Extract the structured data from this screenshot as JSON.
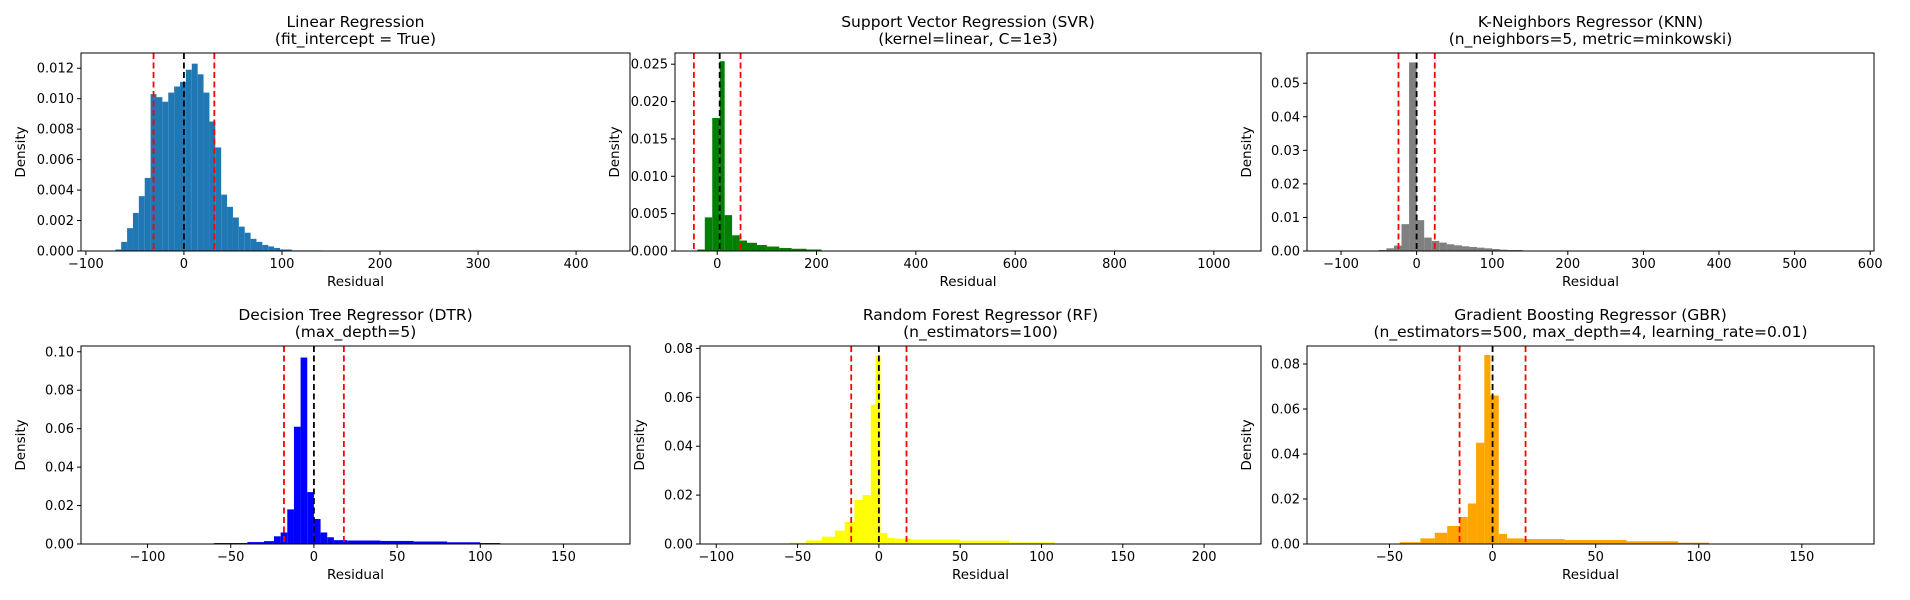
{
  "figure": {
    "background": "#ffffff"
  },
  "chart_data": [
    {
      "type": "histogram",
      "title": [
        "Linear Regression",
        "(fit_intercept = True)"
      ],
      "xlabel": "Residual",
      "ylabel": "Density",
      "xlim": [
        -105,
        455
      ],
      "ylim": [
        0,
        0.013
      ],
      "xticks": [
        -100,
        0,
        100,
        200,
        300,
        400
      ],
      "yticks": [
        0,
        0.002,
        0.004,
        0.006,
        0.008,
        0.01,
        0.012
      ],
      "ytick_labels": [
        "0.000",
        "0.002",
        "0.004",
        "0.006",
        "0.008",
        "0.010",
        "0.012"
      ],
      "color": "#1f77b4",
      "bins": [
        {
          "x0": -70,
          "x1": -64,
          "y": 0.0001
        },
        {
          "x0": -64,
          "x1": -58,
          "y": 0.0006
        },
        {
          "x0": -58,
          "x1": -52,
          "y": 0.0015
        },
        {
          "x0": -52,
          "x1": -46,
          "y": 0.0025
        },
        {
          "x0": -46,
          "x1": -40,
          "y": 0.0036
        },
        {
          "x0": -40,
          "x1": -34,
          "y": 0.0048
        },
        {
          "x0": -34,
          "x1": -28,
          "y": 0.0103
        },
        {
          "x0": -28,
          "x1": -22,
          "y": 0.0101
        },
        {
          "x0": -22,
          "x1": -16,
          "y": 0.0098
        },
        {
          "x0": -16,
          "x1": -10,
          "y": 0.0104
        },
        {
          "x0": -10,
          "x1": -4,
          "y": 0.0108
        },
        {
          "x0": -4,
          "x1": 2,
          "y": 0.0111
        },
        {
          "x0": 2,
          "x1": 8,
          "y": 0.0119
        },
        {
          "x0": 8,
          "x1": 14,
          "y": 0.0123
        },
        {
          "x0": 14,
          "x1": 20,
          "y": 0.0116
        },
        {
          "x0": 20,
          "x1": 26,
          "y": 0.0104
        },
        {
          "x0": 26,
          "x1": 32,
          "y": 0.0085
        },
        {
          "x0": 32,
          "x1": 38,
          "y": 0.0068
        },
        {
          "x0": 38,
          "x1": 44,
          "y": 0.0037
        },
        {
          "x0": 44,
          "x1": 50,
          "y": 0.0029
        },
        {
          "x0": 50,
          "x1": 56,
          "y": 0.0022
        },
        {
          "x0": 56,
          "x1": 62,
          "y": 0.0016
        },
        {
          "x0": 62,
          "x1": 68,
          "y": 0.0012
        },
        {
          "x0": 68,
          "x1": 74,
          "y": 0.0008
        },
        {
          "x0": 74,
          "x1": 80,
          "y": 0.0006
        },
        {
          "x0": 80,
          "x1": 86,
          "y": 0.0004
        },
        {
          "x0": 86,
          "x1": 92,
          "y": 0.0003
        },
        {
          "x0": 92,
          "x1": 98,
          "y": 0.0002
        },
        {
          "x0": 98,
          "x1": 110,
          "y": 0.0001
        },
        {
          "x0": 110,
          "x1": 140,
          "y": 4e-05
        }
      ],
      "vlines": [
        {
          "x": -31,
          "color": "#ff0000"
        },
        {
          "x": 0,
          "color": "#000000"
        },
        {
          "x": 31,
          "color": "#ff0000"
        }
      ]
    },
    {
      "type": "histogram",
      "title": [
        "Support Vector Regression (SVR)",
        "(kernel=linear, C=1e3)"
      ],
      "xlabel": "Residual",
      "ylabel": "Density",
      "xlim": [
        -85,
        1095
      ],
      "ylim": [
        0,
        0.0265
      ],
      "xticks": [
        0,
        200,
        400,
        600,
        800,
        1000
      ],
      "yticks": [
        0,
        0.005,
        0.01,
        0.015,
        0.02,
        0.025
      ],
      "ytick_labels": [
        "0.000",
        "0.005",
        "0.010",
        "0.015",
        "0.020",
        "0.025"
      ],
      "color": "#008000",
      "bins": [
        {
          "x0": -40,
          "x1": -25,
          "y": 0.0002
        },
        {
          "x0": -25,
          "x1": -10,
          "y": 0.0045
        },
        {
          "x0": -10,
          "x1": 5,
          "y": 0.0178
        },
        {
          "x0": 5,
          "x1": 15,
          "y": 0.0254
        },
        {
          "x0": 15,
          "x1": 30,
          "y": 0.0048
        },
        {
          "x0": 30,
          "x1": 45,
          "y": 0.0021
        },
        {
          "x0": 45,
          "x1": 60,
          "y": 0.0014
        },
        {
          "x0": 60,
          "x1": 80,
          "y": 0.0011
        },
        {
          "x0": 80,
          "x1": 100,
          "y": 0.0008
        },
        {
          "x0": 100,
          "x1": 125,
          "y": 0.0006
        },
        {
          "x0": 125,
          "x1": 150,
          "y": 0.0004
        },
        {
          "x0": 150,
          "x1": 180,
          "y": 0.0003
        },
        {
          "x0": 180,
          "x1": 210,
          "y": 0.0002
        }
      ],
      "vlines": [
        {
          "x": -47,
          "color": "#ff0000"
        },
        {
          "x": 5,
          "color": "#000000"
        },
        {
          "x": 47,
          "color": "#ff0000"
        }
      ]
    },
    {
      "type": "histogram",
      "title": [
        "K-Neighbors Regressor (KNN)",
        "(n_neighbors=5, metric=minkowski)"
      ],
      "xlabel": "Residual",
      "ylabel": "Density",
      "xlim": [
        -145,
        605
      ],
      "ylim": [
        0,
        0.059
      ],
      "xticks": [
        -100,
        0,
        100,
        200,
        300,
        400,
        500,
        600
      ],
      "yticks": [
        0,
        0.01,
        0.02,
        0.03,
        0.04,
        0.05
      ],
      "ytick_labels": [
        "0.00",
        "0.01",
        "0.02",
        "0.03",
        "0.04",
        "0.05"
      ],
      "color": "#808080",
      "bins": [
        {
          "x0": -50,
          "x1": -40,
          "y": 0.0003
        },
        {
          "x0": -40,
          "x1": -30,
          "y": 0.0008
        },
        {
          "x0": -30,
          "x1": -20,
          "y": 0.0016
        },
        {
          "x0": -20,
          "x1": -10,
          "y": 0.008
        },
        {
          "x0": -10,
          "x1": 0,
          "y": 0.0562
        },
        {
          "x0": 0,
          "x1": 10,
          "y": 0.0092
        },
        {
          "x0": 10,
          "x1": 20,
          "y": 0.004
        },
        {
          "x0": 20,
          "x1": 30,
          "y": 0.003
        },
        {
          "x0": 30,
          "x1": 40,
          "y": 0.0025
        },
        {
          "x0": 40,
          "x1": 50,
          "y": 0.002
        },
        {
          "x0": 50,
          "x1": 60,
          "y": 0.0017
        },
        {
          "x0": 60,
          "x1": 70,
          "y": 0.0014
        },
        {
          "x0": 70,
          "x1": 80,
          "y": 0.0012
        },
        {
          "x0": 80,
          "x1": 90,
          "y": 0.001
        },
        {
          "x0": 90,
          "x1": 100,
          "y": 0.0008
        },
        {
          "x0": 100,
          "x1": 110,
          "y": 0.0006
        },
        {
          "x0": 110,
          "x1": 120,
          "y": 0.0004
        },
        {
          "x0": 120,
          "x1": 140,
          "y": 0.0003
        },
        {
          "x0": 140,
          "x1": 160,
          "y": 0.00015
        }
      ],
      "vlines": [
        {
          "x": -24,
          "color": "#ff0000"
        },
        {
          "x": 0,
          "color": "#000000"
        },
        {
          "x": 24,
          "color": "#ff0000"
        }
      ]
    },
    {
      "type": "histogram",
      "title": [
        "Decision Tree Regressor (DTR)",
        "(max_depth=5)"
      ],
      "xlabel": "Residual",
      "ylabel": "Density",
      "xlim": [
        -140,
        190
      ],
      "ylim": [
        0,
        0.103
      ],
      "xticks": [
        -100,
        -50,
        0,
        50,
        100,
        150
      ],
      "yticks": [
        0,
        0.02,
        0.04,
        0.06,
        0.08,
        0.1
      ],
      "ytick_labels": [
        "0.00",
        "0.02",
        "0.04",
        "0.06",
        "0.08",
        "0.10"
      ],
      "color": "#0000ff",
      "bins": [
        {
          "x0": -60,
          "x1": -50,
          "y": 0.0005
        },
        {
          "x0": -50,
          "x1": -40,
          "y": 0.0005
        },
        {
          "x0": -40,
          "x1": -30,
          "y": 0.001
        },
        {
          "x0": -30,
          "x1": -24,
          "y": 0.0015
        },
        {
          "x0": -24,
          "x1": -20,
          "y": 0.004
        },
        {
          "x0": -20,
          "x1": -16,
          "y": 0.006
        },
        {
          "x0": -16,
          "x1": -12,
          "y": 0.018
        },
        {
          "x0": -12,
          "x1": -8,
          "y": 0.061
        },
        {
          "x0": -8,
          "x1": -4,
          "y": 0.097
        },
        {
          "x0": -4,
          "x1": 0,
          "y": 0.027
        },
        {
          "x0": 0,
          "x1": 4,
          "y": 0.013
        },
        {
          "x0": 4,
          "x1": 8,
          "y": 0.006
        },
        {
          "x0": 8,
          "x1": 12,
          "y": 0.0035
        },
        {
          "x0": 12,
          "x1": 20,
          "y": 0.002
        },
        {
          "x0": 20,
          "x1": 40,
          "y": 0.0018
        },
        {
          "x0": 40,
          "x1": 60,
          "y": 0.0016
        },
        {
          "x0": 60,
          "x1": 80,
          "y": 0.0013
        },
        {
          "x0": 80,
          "x1": 100,
          "y": 0.0009
        },
        {
          "x0": 100,
          "x1": 112,
          "y": 0.0005
        }
      ],
      "vlines": [
        {
          "x": -18,
          "color": "#ff0000"
        },
        {
          "x": 0,
          "color": "#000000"
        },
        {
          "x": 18,
          "color": "#ff0000"
        }
      ]
    },
    {
      "type": "histogram",
      "title": [
        "Random Forest Regressor (RF)",
        "(n_estimators=100)"
      ],
      "xlabel": "Residual",
      "ylabel": "Density",
      "xlim": [
        -110,
        235
      ],
      "ylim": [
        0,
        0.081
      ],
      "xticks": [
        -100,
        -50,
        0,
        50,
        100,
        150,
        200
      ],
      "yticks": [
        0,
        0.02,
        0.04,
        0.06,
        0.08
      ],
      "ytick_labels": [
        "0.00",
        "0.02",
        "0.04",
        "0.06",
        "0.08"
      ],
      "color": "#ffff00",
      "bins": [
        {
          "x0": -55,
          "x1": -45,
          "y": 0.0005
        },
        {
          "x0": -45,
          "x1": -35,
          "y": 0.0015
        },
        {
          "x0": -35,
          "x1": -27,
          "y": 0.003
        },
        {
          "x0": -27,
          "x1": -21,
          "y": 0.0055
        },
        {
          "x0": -21,
          "x1": -15,
          "y": 0.009
        },
        {
          "x0": -15,
          "x1": -10,
          "y": 0.018
        },
        {
          "x0": -10,
          "x1": -5,
          "y": 0.02
        },
        {
          "x0": -5,
          "x1": -2,
          "y": 0.057
        },
        {
          "x0": -2,
          "x1": 1,
          "y": 0.077
        },
        {
          "x0": 1,
          "x1": 5,
          "y": 0.0045
        },
        {
          "x0": 5,
          "x1": 10,
          "y": 0.0025
        },
        {
          "x0": 10,
          "x1": 20,
          "y": 0.0022
        },
        {
          "x0": 20,
          "x1": 50,
          "y": 0.0018
        },
        {
          "x0": 50,
          "x1": 80,
          "y": 0.0014
        },
        {
          "x0": 80,
          "x1": 108,
          "y": 0.0007
        }
      ],
      "vlines": [
        {
          "x": -17,
          "color": "#ff0000"
        },
        {
          "x": 0,
          "color": "#000000"
        },
        {
          "x": 17,
          "color": "#ff0000"
        }
      ]
    },
    {
      "type": "histogram",
      "title": [
        "Gradient Boosting Regressor (GBR)",
        "(n_estimators=500, max_depth=4, learning_rate=0.01)"
      ],
      "xlabel": "Residual",
      "ylabel": "Density",
      "xlim": [
        -90,
        185
      ],
      "ylim": [
        0,
        0.088
      ],
      "xticks": [
        -50,
        0,
        50,
        100,
        150
      ],
      "yticks": [
        0,
        0.02,
        0.04,
        0.06,
        0.08
      ],
      "ytick_labels": [
        "0.00",
        "0.02",
        "0.04",
        "0.06",
        "0.08"
      ],
      "color": "#ffa500",
      "bins": [
        {
          "x0": -45,
          "x1": -35,
          "y": 0.0008
        },
        {
          "x0": -35,
          "x1": -28,
          "y": 0.0025
        },
        {
          "x0": -28,
          "x1": -22,
          "y": 0.005
        },
        {
          "x0": -22,
          "x1": -16,
          "y": 0.008
        },
        {
          "x0": -16,
          "x1": -12,
          "y": 0.012
        },
        {
          "x0": -12,
          "x1": -8,
          "y": 0.018
        },
        {
          "x0": -8,
          "x1": -4,
          "y": 0.045
        },
        {
          "x0": -4,
          "x1": -1,
          "y": 0.084
        },
        {
          "x0": -1,
          "x1": 3,
          "y": 0.066
        },
        {
          "x0": 3,
          "x1": 7,
          "y": 0.0045
        },
        {
          "x0": 7,
          "x1": 15,
          "y": 0.0025
        },
        {
          "x0": 15,
          "x1": 35,
          "y": 0.0022
        },
        {
          "x0": 35,
          "x1": 65,
          "y": 0.0018
        },
        {
          "x0": 65,
          "x1": 90,
          "y": 0.0012
        },
        {
          "x0": 90,
          "x1": 105,
          "y": 0.0006
        }
      ],
      "vlines": [
        {
          "x": -16,
          "color": "#ff0000"
        },
        {
          "x": 0,
          "color": "#000000"
        },
        {
          "x": 16,
          "color": "#ff0000"
        }
      ]
    }
  ]
}
